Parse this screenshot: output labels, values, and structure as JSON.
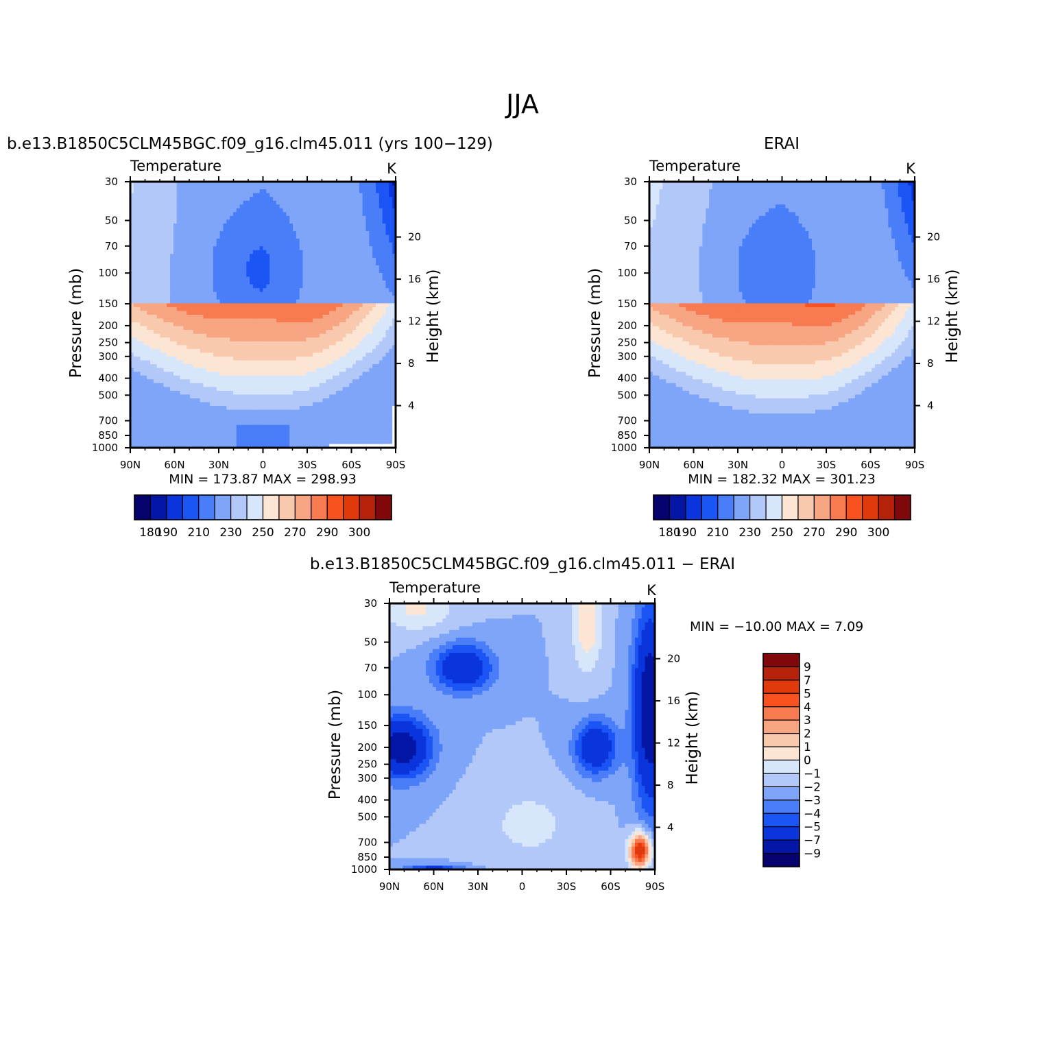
{
  "page": {
    "season": "JJA"
  },
  "panels": [
    {
      "id": "model",
      "title": "b.e13.B1850C5CLM45BGC.f09_g16.clm45.011 (yrs 100−129)",
      "variable": "Temperature",
      "units": "K",
      "stats": "MIN = 173.87 MAX = 298.93",
      "colorbar_labels": [
        "180",
        "190",
        "210",
        "230",
        "250",
        "270",
        "290",
        "300"
      ]
    },
    {
      "id": "obs",
      "title": "ERAI",
      "variable": "Temperature",
      "units": "K",
      "stats": "MIN = 182.32 MAX = 301.23",
      "colorbar_labels": [
        "180",
        "190",
        "210",
        "230",
        "250",
        "270",
        "290",
        "300"
      ]
    },
    {
      "id": "diff",
      "title": "b.e13.B1850C5CLM45BGC.f09_g16.clm45.011 − ERAI",
      "variable": "Temperature",
      "units": "K",
      "stats": "MIN = −10.00 MAX = 7.09",
      "colorbar_labels": [
        "9",
        "7",
        "5",
        "4",
        "3",
        "2",
        "1",
        "0",
        "−1",
        "−2",
        "−3",
        "−4",
        "−5",
        "−7",
        "−9"
      ]
    }
  ],
  "axes": {
    "xlabel": "",
    "ylabel_left": "Pressure (mb)",
    "ylabel_right": "Height (km)",
    "x_ticks": [
      "90N",
      "60N",
      "30N",
      "0",
      "30S",
      "60S",
      "90S"
    ],
    "pressure_ticks": [
      "30",
      "50",
      "70",
      "100",
      "150",
      "200",
      "250",
      "300",
      "400",
      "500",
      "700",
      "850",
      "1000"
    ],
    "height_ticks": [
      "20",
      "16",
      "12",
      "8",
      "4"
    ]
  },
  "chart_data": [
    {
      "type": "heatmap",
      "title": "b.e13.B1850C5CLM45BGC.f09_g16.clm45.011 (yrs 100−129)",
      "variable": "Temperature",
      "units": "K",
      "x_range": [
        "90N",
        "90S"
      ],
      "y_range_pressure_mb": [
        1000,
        30
      ],
      "y_scale": "log",
      "min": 173.87,
      "max": 298.93,
      "contour_levels": [
        180,
        185,
        190,
        200,
        210,
        220,
        230,
        240,
        250,
        260,
        270,
        280,
        290,
        295,
        300
      ]
    },
    {
      "type": "heatmap",
      "title": "ERAI",
      "variable": "Temperature",
      "units": "K",
      "x_range": [
        "90N",
        "90S"
      ],
      "y_range_pressure_mb": [
        1000,
        30
      ],
      "y_scale": "log",
      "min": 182.32,
      "max": 301.23,
      "contour_levels": [
        180,
        185,
        190,
        200,
        210,
        220,
        230,
        240,
        250,
        260,
        270,
        280,
        290,
        295,
        300
      ]
    },
    {
      "type": "heatmap",
      "title": "b.e13.B1850C5CLM45BGC.f09_g16.clm45.011 − ERAI",
      "variable": "Temperature",
      "units": "K",
      "x_range": [
        "90N",
        "90S"
      ],
      "y_range_pressure_mb": [
        1000,
        30
      ],
      "y_scale": "log",
      "min": -10.0,
      "max": 7.09,
      "contour_levels": [
        -9,
        -7,
        -5,
        -4,
        -3,
        -2,
        -1,
        0,
        1,
        2,
        3,
        4,
        5,
        7,
        9
      ]
    }
  ],
  "colors": {
    "abs_palette": [
      "#06036e",
      "#0416a6",
      "#0a35dc",
      "#1c55f5",
      "#4a7ef8",
      "#7fa5f9",
      "#b2c8f9",
      "#d7e6fb",
      "#fde5d4",
      "#f9c9ae",
      "#f7a583",
      "#f77a50",
      "#f7521f",
      "#e03a0c",
      "#b4220a",
      "#80080a"
    ],
    "diff_palette": [
      "#06036e",
      "#0416a6",
      "#0a35dc",
      "#1c55f5",
      "#4a7ef8",
      "#7fa5f9",
      "#b2c8f9",
      "#d7e6fb",
      "#fde5d4",
      "#f9c9ae",
      "#f7a583",
      "#f77a50",
      "#f7521f",
      "#e03a0c",
      "#b4220a",
      "#80080a"
    ]
  }
}
